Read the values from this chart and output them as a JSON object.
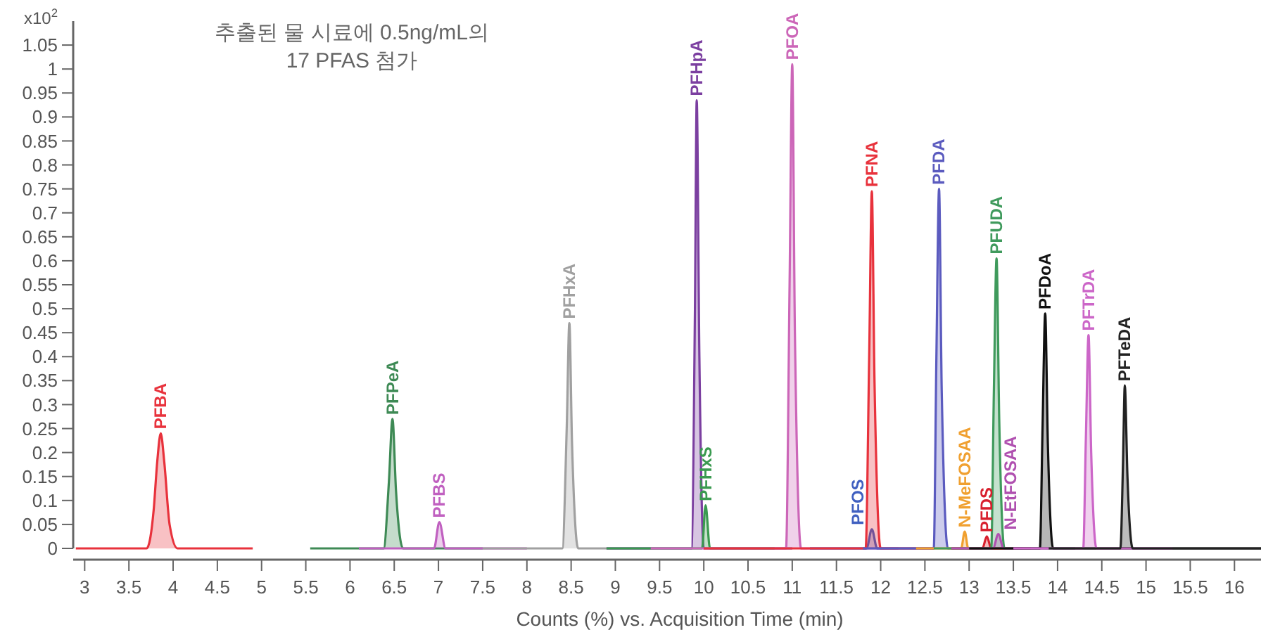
{
  "chart_data": {
    "type": "area",
    "title": "추출된 물 시료에 0.5ng/mL의\n17 PFAS 첨가",
    "xlabel": "Counts (%) vs. Acquisition Time (min)",
    "ylabel": "x10$^{2}$",
    "xlim": [
      2.87,
      16.3
    ],
    "xticks": [
      3,
      3.5,
      4,
      4.5,
      5,
      5.5,
      6,
      6.5,
      7,
      7.5,
      8,
      8.5,
      9,
      9.5,
      10,
      10.5,
      11,
      11.5,
      12,
      12.5,
      13,
      13.5,
      14,
      14.5,
      15,
      15.5,
      16
    ],
    "ylim": [
      0,
      1.1
    ],
    "yticks": [
      0,
      0.05,
      0.1,
      0.15,
      0.2,
      0.25,
      0.3,
      0.35,
      0.4,
      0.45,
      0.5,
      0.55,
      0.6,
      0.65,
      0.7,
      0.75,
      0.8,
      0.85,
      0.9,
      0.95,
      1,
      1.05
    ],
    "grid": false,
    "series": [
      {
        "name": "PFBA",
        "color": "#e8323c",
        "x": [
          2.9,
          3.7,
          3.78,
          3.82,
          3.86,
          3.9,
          3.96,
          4.05,
          4.9
        ],
        "values": [
          0,
          0,
          0.08,
          0.18,
          0.24,
          0.18,
          0.05,
          0,
          0
        ]
      },
      {
        "name": "PFPeA",
        "color": "#3e8a55",
        "x": [
          5.55,
          6.38,
          6.44,
          6.48,
          6.52,
          6.6,
          7.5
        ],
        "values": [
          0,
          0,
          0.14,
          0.27,
          0.12,
          0,
          0
        ]
      },
      {
        "name": "PFBS",
        "color": "#c060c0",
        "x": [
          6.1,
          6.95,
          7.01,
          7.08,
          8.0
        ],
        "values": [
          0,
          0,
          0.055,
          0,
          0
        ]
      },
      {
        "name": "PFHxA",
        "color": "#a0a0a0",
        "x": [
          7.5,
          8.4,
          8.45,
          8.48,
          8.51,
          8.58,
          9.4
        ],
        "values": [
          0,
          0,
          0.25,
          0.47,
          0.22,
          0,
          0
        ]
      },
      {
        "name": "PFHpA",
        "color": "#7b3fa0",
        "x": [
          8.9,
          9.86,
          9.9,
          9.92,
          9.95,
          10.0,
          11.0
        ],
        "values": [
          0,
          0,
          0.5,
          0.935,
          0.4,
          0,
          0
        ]
      },
      {
        "name": "PFHxS",
        "color": "#3a9a50",
        "x": [
          8.9,
          9.98,
          10.02,
          10.07,
          10.8
        ],
        "values": [
          0,
          0,
          0.09,
          0,
          0
        ]
      },
      {
        "name": "PFOA",
        "color": "#cc66b8",
        "x": [
          9.4,
          10.93,
          10.97,
          11.0,
          11.03,
          11.1,
          12.2
        ],
        "values": [
          0,
          0,
          0.55,
          1.01,
          0.45,
          0,
          0
        ]
      },
      {
        "name": "PFOS",
        "color": "#4060c0",
        "x": [
          11.2,
          11.84,
          11.9,
          11.96,
          12.6
        ],
        "values": [
          0,
          0,
          0.04,
          0,
          0
        ]
      },
      {
        "name": "PFNA",
        "color": "#e8323c",
        "x": [
          10.0,
          11.83,
          11.87,
          11.9,
          11.93,
          12.0,
          12.6
        ],
        "values": [
          0,
          0,
          0.4,
          0.745,
          0.35,
          0,
          0
        ]
      },
      {
        "name": "PFDA",
        "color": "#5b5bbf",
        "x": [
          11.8,
          12.6,
          12.63,
          12.66,
          12.69,
          12.76,
          13.6
        ],
        "values": [
          0,
          0,
          0.4,
          0.75,
          0.33,
          0,
          0
        ]
      },
      {
        "name": "N-MeFOSAA",
        "color": "#f0a030",
        "x": [
          12.4,
          12.91,
          12.95,
          12.99,
          13.5
        ],
        "values": [
          0,
          0,
          0.035,
          0,
          0
        ]
      },
      {
        "name": "PFDS",
        "color": "#d8202e",
        "x": [
          12.8,
          13.15,
          13.2,
          13.25,
          13.7
        ],
        "values": [
          0,
          0,
          0.025,
          0,
          0
        ]
      },
      {
        "name": "PFUDA",
        "color": "#3f9a5c",
        "x": [
          12.6,
          13.25,
          13.28,
          13.31,
          13.34,
          13.4,
          14.2
        ],
        "values": [
          0,
          0,
          0.33,
          0.605,
          0.27,
          0,
          0
        ]
      },
      {
        "name": "N-EtFOSAA",
        "color": "#b050b0",
        "x": [
          12.8,
          13.27,
          13.33,
          13.39,
          13.9
        ],
        "values": [
          0,
          0,
          0.03,
          0,
          0
        ]
      },
      {
        "name": "PFDoA",
        "color": "#111111",
        "x": [
          13.0,
          13.8,
          13.83,
          13.86,
          13.89,
          13.95,
          16.3
        ],
        "values": [
          0,
          0,
          0.25,
          0.49,
          0.22,
          0,
          0
        ]
      },
      {
        "name": "PFTrDA",
        "color": "#cc66c8",
        "x": [
          13.5,
          14.29,
          14.32,
          14.35,
          14.38,
          14.44,
          15.3
        ],
        "values": [
          0,
          0,
          0.23,
          0.445,
          0.2,
          0,
          0
        ]
      },
      {
        "name": "PFTeDA",
        "color": "#222222",
        "x": [
          13.9,
          14.71,
          14.74,
          14.76,
          14.79,
          14.85,
          16.3
        ],
        "values": [
          0,
          0,
          0.18,
          0.34,
          0.15,
          0,
          0
        ]
      }
    ]
  }
}
